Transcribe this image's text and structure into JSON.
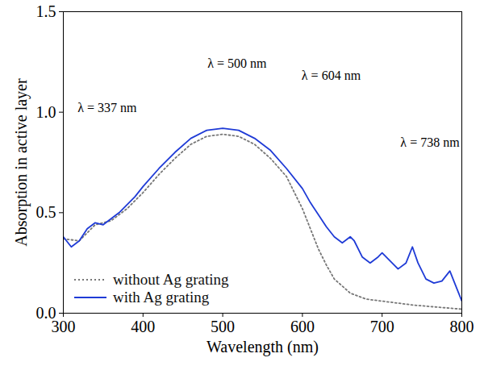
{
  "chart_data": {
    "type": "line",
    "x_label": "Wavelength (nm)",
    "y_label": "Absorption in active layer",
    "xlim": [
      300,
      800
    ],
    "xticks": [
      300,
      400,
      500,
      600,
      700,
      800
    ],
    "ylim": [
      0,
      1.5
    ],
    "yticks": [
      0,
      0.5,
      1,
      1.5
    ],
    "grid": false,
    "legend": "lower left",
    "series": [
      {
        "name": "without Ag grating",
        "color": "#777777",
        "line_style": "dotted",
        "x": [
          300,
          320,
          340,
          360,
          380,
          400,
          420,
          440,
          460,
          480,
          500,
          520,
          540,
          560,
          580,
          600,
          610,
          620,
          630,
          640,
          660,
          680,
          700,
          740,
          800
        ],
        "values": [
          0.37,
          0.36,
          0.44,
          0.46,
          0.52,
          0.6,
          0.69,
          0.77,
          0.84,
          0.88,
          0.89,
          0.88,
          0.84,
          0.77,
          0.68,
          0.52,
          0.42,
          0.32,
          0.24,
          0.17,
          0.1,
          0.07,
          0.06,
          0.04,
          0.02
        ]
      },
      {
        "name": "with Ag grating",
        "color": "#1f3bd6",
        "line_style": "solid",
        "x": [
          300,
          310,
          320,
          330,
          340,
          350,
          360,
          370,
          380,
          390,
          400,
          420,
          440,
          460,
          480,
          500,
          520,
          540,
          560,
          580,
          600,
          610,
          620,
          630,
          640,
          650,
          660,
          665,
          675,
          685,
          695,
          700,
          710,
          720,
          730,
          738,
          745,
          755,
          765,
          775,
          785,
          790,
          800
        ],
        "values": [
          0.38,
          0.33,
          0.36,
          0.42,
          0.45,
          0.44,
          0.47,
          0.5,
          0.54,
          0.58,
          0.63,
          0.72,
          0.8,
          0.87,
          0.91,
          0.92,
          0.91,
          0.87,
          0.81,
          0.72,
          0.62,
          0.55,
          0.49,
          0.43,
          0.38,
          0.35,
          0.38,
          0.36,
          0.28,
          0.25,
          0.28,
          0.3,
          0.26,
          0.22,
          0.25,
          0.33,
          0.25,
          0.17,
          0.15,
          0.16,
          0.21,
          0.16,
          0.06
        ]
      }
    ],
    "annotations": [
      {
        "text": "λ = 337 nm",
        "x": 355,
        "y": 1.02
      },
      {
        "text": "λ = 500 nm",
        "x": 518,
        "y": 1.24
      },
      {
        "text": "λ = 604 nm",
        "x": 636,
        "y": 1.18
      },
      {
        "text": "λ = 738 nm",
        "x": 760,
        "y": 0.85
      }
    ]
  }
}
